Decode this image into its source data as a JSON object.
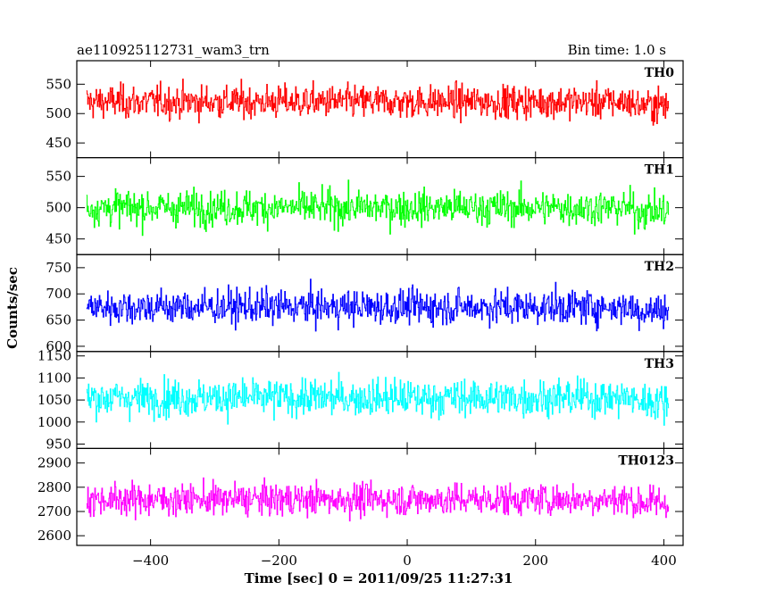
{
  "chart_data": {
    "type": "line",
    "title_left": "ae110925112731_wam3_trn",
    "title_right": "Bin time: 1.0 s",
    "xlabel": "Time [sec] 0 = 2011/09/25 11:27:31",
    "ylabel": "Counts/sec",
    "xlim": [
      -515,
      430
    ],
    "x_range": [
      -500,
      407
    ],
    "x_ticks": [
      -400,
      -200,
      0,
      200,
      400
    ],
    "x_tick_labels": [
      "−400",
      "−200",
      "0",
      "200",
      "400"
    ],
    "panels": [
      {
        "name": "TH0",
        "color": "#ff0000",
        "ylim": [
          425,
          590
        ],
        "ticks": [
          450,
          500,
          550
        ],
        "mean": 520,
        "amplitude": 22
      },
      {
        "name": "TH1",
        "color": "#00ff00",
        "ylim": [
          425,
          580
        ],
        "ticks": [
          450,
          500,
          550
        ],
        "mean": 500,
        "amplitude": 22
      },
      {
        "name": "TH2",
        "color": "#0000ff",
        "ylim": [
          590,
          775
        ],
        "ticks": [
          600,
          650,
          700,
          750
        ],
        "mean": 675,
        "amplitude": 26
      },
      {
        "name": "TH3",
        "color": "#00ffff",
        "ylim": [
          940,
          1160
        ],
        "ticks": [
          950,
          1000,
          1050,
          1100,
          1150
        ],
        "mean": 1055,
        "amplitude": 33
      },
      {
        "name": "TH0123",
        "color": "#ff00ff",
        "ylim": [
          2560,
          2960
        ],
        "ticks": [
          2600,
          2700,
          2800,
          2900
        ],
        "mean": 2750,
        "amplitude": 52
      }
    ]
  }
}
